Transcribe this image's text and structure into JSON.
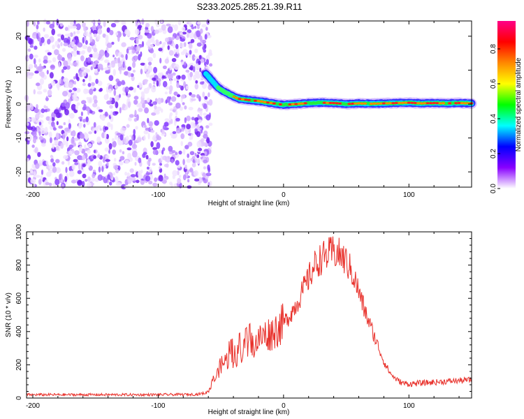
{
  "title": "S233.2025.285.21.39.R11",
  "chart_data": [
    {
      "type": "heatmap",
      "xlabel": "Height of straight line (km)",
      "ylabel": "Frequency (Hz)",
      "xlim": [
        -205,
        150
      ],
      "ylim": [
        -24.5,
        24.5
      ],
      "xticks": [
        -200,
        -100,
        0,
        100
      ],
      "yticks": [
        -20,
        -10,
        0,
        10,
        20
      ],
      "noise_region_x": [
        -205,
        -58
      ],
      "ridge_points": [
        [
          -62,
          9.0
        ],
        [
          -58,
          7.2
        ],
        [
          -55,
          6.0
        ],
        [
          -52,
          4.8
        ],
        [
          -48,
          3.8
        ],
        [
          -44,
          3.0
        ],
        [
          -40,
          2.2
        ],
        [
          -35,
          1.5
        ],
        [
          -28,
          1.2
        ],
        [
          -20,
          0.9
        ],
        [
          -10,
          0.3
        ],
        [
          0,
          -0.2
        ],
        [
          10,
          0.0
        ],
        [
          20,
          0.3
        ],
        [
          30,
          0.4
        ],
        [
          40,
          0.3
        ],
        [
          50,
          0.0
        ],
        [
          60,
          0.2
        ],
        [
          70,
          0.1
        ],
        [
          80,
          0.2
        ],
        [
          90,
          0.3
        ],
        [
          100,
          0.4
        ],
        [
          110,
          0.2
        ],
        [
          120,
          0.3
        ],
        [
          130,
          0.2
        ],
        [
          140,
          0.3
        ],
        [
          150,
          0.2
        ]
      ],
      "colorbar": {
        "label": "Normalized spectral amplitude",
        "ticks": [
          "0.0",
          "0.2",
          "0.4",
          "0.6",
          "0.8"
        ],
        "range": [
          0,
          0.96
        ],
        "colors": [
          "#ffffff",
          "#8800ff",
          "#0000ff",
          "#00ffff",
          "#00ff00",
          "#ffff00",
          "#ff8800",
          "#ff0000",
          "#ff0088"
        ]
      }
    },
    {
      "type": "line",
      "xlabel": "Height of straight line (km)",
      "ylabel": "SNR (10 * v/v)",
      "xlim": [
        -205,
        150
      ],
      "ylim": [
        0,
        1000
      ],
      "xticks": [
        -200,
        -100,
        0,
        100
      ],
      "yticks": [
        0,
        200,
        400,
        600,
        800,
        1000
      ],
      "series": [
        {
          "color": "#e8302a",
          "x": [
            -205,
            -150,
            -100,
            -70,
            -62,
            -58,
            -55,
            -52,
            -50,
            -45,
            -40,
            -35,
            -30,
            -25,
            -20,
            -15,
            -10,
            -5,
            0,
            5,
            10,
            15,
            20,
            25,
            30,
            35,
            40,
            45,
            50,
            55,
            60,
            65,
            70,
            75,
            80,
            85,
            90,
            95,
            100,
            110,
            120,
            130,
            140,
            150
          ],
          "y": [
            20,
            20,
            20,
            22,
            30,
            60,
            110,
            160,
            200,
            230,
            250,
            270,
            290,
            320,
            350,
            380,
            390,
            420,
            450,
            500,
            560,
            640,
            720,
            800,
            840,
            860,
            880,
            860,
            820,
            750,
            640,
            520,
            420,
            320,
            220,
            150,
            110,
            90,
            85,
            90,
            95,
            100,
            105,
            110
          ]
        }
      ]
    }
  ]
}
